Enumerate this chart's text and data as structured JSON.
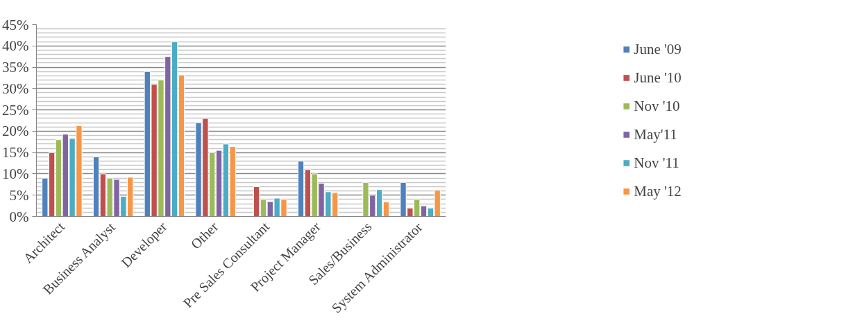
{
  "chart_data": {
    "type": "bar",
    "categories": [
      "Architect",
      "Business Analyst",
      "Developer",
      "Other",
      "Pre Sales Consultant",
      "Project Manager",
      "Sales/Business",
      "System Administrator"
    ],
    "series": [
      {
        "name": "June '09",
        "color": "#4f81bd",
        "values": [
          9,
          14,
          34,
          22,
          null,
          13,
          null,
          8
        ]
      },
      {
        "name": "June '10",
        "color": "#c0504d",
        "values": [
          15,
          10,
          31,
          23,
          7,
          11,
          null,
          2
        ]
      },
      {
        "name": "Nov '10",
        "color": "#9bbb59",
        "values": [
          18,
          9,
          32,
          15,
          4,
          10,
          8,
          4
        ]
      },
      {
        "name": "May'11",
        "color": "#8064a2",
        "values": [
          19.3,
          8.7,
          37.5,
          15.5,
          3.5,
          7.8,
          5,
          2.5
        ]
      },
      {
        "name": "Nov '11",
        "color": "#4bacc6",
        "values": [
          18.3,
          4.7,
          41,
          17,
          4.3,
          5.8,
          6.3,
          2
        ]
      },
      {
        "name": "May '12",
        "color": "#f79646",
        "values": [
          21.3,
          9.2,
          33.2,
          16.4,
          4,
          5.6,
          3.4,
          6.2
        ]
      }
    ],
    "ylim": [
      0,
      45
    ],
    "yticks": [
      {
        "value": 0,
        "label": "0%"
      },
      {
        "value": 5,
        "label": "5%"
      },
      {
        "value": 10,
        "label": "10%"
      },
      {
        "value": 15,
        "label": "15%"
      },
      {
        "value": 20,
        "label": "20%"
      },
      {
        "value": 25,
        "label": "25%"
      },
      {
        "value": 30,
        "label": "30%"
      },
      {
        "value": 35,
        "label": "35%"
      },
      {
        "value": 40,
        "label": "40%"
      },
      {
        "value": 45,
        "label": "45%"
      }
    ],
    "grid": "y",
    "legend": "right"
  }
}
